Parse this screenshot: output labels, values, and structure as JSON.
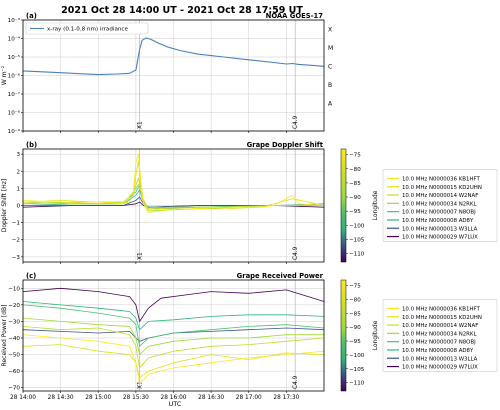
{
  "title": "2021 Oct 28 14:00 UT - 2021 Oct 28 17:59 UT",
  "colors": {
    "xray": "#4a7fbf",
    "grid": "#cccccc",
    "marker": "#aaaaaa"
  },
  "shared_x": {
    "xlabel": "UTC",
    "ticks": [
      "28 14:00",
      "28 14:30",
      "28 15:00",
      "28 15:30",
      "28 16:00",
      "28 16:30",
      "28 17:00",
      "28 17:30"
    ],
    "domain_minutes": [
      0,
      240
    ]
  },
  "chart_data": [
    {
      "type": "line",
      "panel_label": "(a)",
      "panel_title": "NOAA GOES-17",
      "ylabel": "W m⁻²",
      "yscale": "log",
      "ylim_exp": [
        -9,
        -3
      ],
      "yticks": [
        "10⁻⁹",
        "10⁻⁸",
        "10⁻⁷",
        "10⁻⁶",
        "10⁻⁵",
        "10⁻⁴",
        "10⁻³"
      ],
      "class_labels": [
        "X",
        "M",
        "C",
        "B",
        "A"
      ],
      "markers": [
        "X1",
        "C4.9"
      ],
      "series": [
        {
          "name": "x-ray (0.1-0.8 nm) irradiance",
          "x_minutes": [
            0,
            15,
            30,
            45,
            60,
            75,
            85,
            90,
            93,
            95,
            98,
            100,
            103,
            108,
            115,
            125,
            140,
            160,
            180,
            200,
            210,
            215,
            220,
            230,
            240
          ],
          "log10_y": [
            -5.75,
            -5.8,
            -5.85,
            -5.9,
            -5.95,
            -5.92,
            -5.88,
            -5.7,
            -4.6,
            -4.1,
            -3.98,
            -4.0,
            -4.08,
            -4.25,
            -4.45,
            -4.65,
            -4.85,
            -5.0,
            -5.15,
            -5.3,
            -5.38,
            -5.35,
            -5.4,
            -5.45,
            -5.5
          ]
        }
      ]
    },
    {
      "type": "line",
      "panel_label": "(b)",
      "panel_title": "Grape Doppler Shift",
      "ylabel": "Doppler Shift [Hz]",
      "ylim": [
        -3.3,
        3.3
      ],
      "yticks": [
        -3,
        -2,
        -1,
        0,
        1,
        2,
        3
      ],
      "markers": [
        "X1",
        "C4.9"
      ],
      "colorbar": {
        "label": "Longitude",
        "range": [
          -113,
          -73
        ],
        "ticks": [
          -75,
          -80,
          -85,
          -90,
          -95,
          -100,
          -105,
          -110
        ]
      },
      "legend": [
        "10.0 MHz N0000036 KB1HFT",
        "10.0 MHz N0000015 KD2UHN",
        "10.0 MHz N0000014 W2NAF",
        "10.0 MHz N0000034 N2RKL",
        "10.0 MHz N0000007 N8OBJ",
        "10.0 MHz N0000008 AD8Y",
        "10.0 MHz N0000013 W3LLA",
        "10.0 MHz N0000029 W7LUX"
      ],
      "series": [
        {
          "name": "10.0 MHz N0000036 KB1HFT",
          "color": "#fde725",
          "x_minutes": [
            0,
            30,
            60,
            80,
            88,
            90,
            92,
            94,
            96,
            100,
            110,
            130,
            160,
            190,
            200,
            215,
            220,
            240
          ],
          "values": [
            0.3,
            0.2,
            0.2,
            0.1,
            0.8,
            2.5,
            3.0,
            1.5,
            0.2,
            -0.3,
            -0.2,
            -0.2,
            -0.1,
            -0.1,
            0.0,
            0.6,
            0.1,
            0.0
          ]
        },
        {
          "name": "10.0 MHz N0000015 KD2UHN",
          "color": "#dde318",
          "x_minutes": [
            0,
            30,
            60,
            80,
            88,
            90,
            92,
            94,
            96,
            100,
            110,
            130,
            160,
            190,
            215,
            240
          ],
          "values": [
            0.2,
            0.3,
            0.2,
            0.2,
            0.6,
            1.8,
            2.6,
            1.0,
            0.1,
            -0.4,
            -0.3,
            -0.2,
            -0.2,
            -0.1,
            0.4,
            0.0
          ]
        },
        {
          "name": "10.0 MHz N0000014 W2NAF",
          "color": "#bddf26",
          "x_minutes": [
            0,
            30,
            60,
            85,
            90,
            92,
            95,
            100,
            120,
            160,
            200,
            240
          ],
          "values": [
            0.1,
            0.2,
            0.1,
            0.2,
            1.2,
            1.6,
            0.5,
            -0.2,
            -0.1,
            -0.1,
            0.0,
            0.0
          ]
        },
        {
          "name": "10.0 MHz N0000034 N2RKL",
          "color": "#a0da39",
          "x_minutes": [
            0,
            40,
            80,
            90,
            93,
            96,
            100,
            140,
            200,
            240
          ],
          "values": [
            0.2,
            0.1,
            0.1,
            1.0,
            1.3,
            0.3,
            -0.3,
            -0.2,
            0.0,
            0.0
          ]
        },
        {
          "name": "10.0 MHz N0000007 N8OBJ",
          "color": "#4ac16d",
          "x_minutes": [
            0,
            40,
            80,
            90,
            93,
            96,
            100,
            140,
            200,
            240
          ],
          "values": [
            0.1,
            0.2,
            0.2,
            0.8,
            1.2,
            0.2,
            -0.2,
            -0.1,
            0.0,
            0.1
          ]
        },
        {
          "name": "10.0 MHz N0000008 AD8Y",
          "color": "#2fb47c",
          "x_minutes": [
            0,
            40,
            80,
            90,
            93,
            96,
            100,
            140,
            200,
            240
          ],
          "values": [
            0.0,
            0.1,
            0.1,
            0.6,
            0.9,
            0.2,
            -0.1,
            -0.1,
            0.0,
            0.0
          ]
        },
        {
          "name": "10.0 MHz N0000013 W3LLA",
          "color": "#3b528b",
          "x_minutes": [
            0,
            40,
            80,
            90,
            93,
            96,
            100,
            140,
            200,
            240
          ],
          "values": [
            0.0,
            0.0,
            0.0,
            0.3,
            0.5,
            0.1,
            -0.1,
            0.0,
            0.0,
            0.0
          ]
        },
        {
          "name": "10.0 MHz N0000029 W7LUX",
          "color": "#440154",
          "x_minutes": [
            0,
            40,
            80,
            90,
            93,
            96,
            100,
            140,
            200,
            240
          ],
          "values": [
            -0.1,
            0.0,
            0.0,
            0.1,
            0.2,
            0.0,
            -0.1,
            0.0,
            0.0,
            -0.1
          ]
        }
      ]
    },
    {
      "type": "line",
      "panel_label": "(c)",
      "panel_title": "Grape Received Power",
      "ylabel": "Received Power [dB]",
      "ylim": [
        -72,
        -5
      ],
      "yticks": [
        -70,
        -60,
        -50,
        -40,
        -30,
        -20,
        -10
      ],
      "markers": [
        "X1",
        "C4.9"
      ],
      "colorbar": {
        "label": "Longitude",
        "range": [
          -113,
          -73
        ],
        "ticks": [
          -75,
          -80,
          -85,
          -90,
          -95,
          -100,
          -105,
          -110
        ]
      },
      "legend": [
        "10.0 MHz N0000036 KB1HFT",
        "10.0 MHz N0000015 KD2UHN",
        "10.0 MHz N0000014 W2NAF",
        "10.0 MHz N0000034 N2RKL",
        "10.0 MHz N0000007 N8OBJ",
        "10.0 MHz N0000008 AD8Y",
        "10.0 MHz N0000013 W3LLA",
        "10.0 MHz N0000029 W7LUX"
      ],
      "series": [
        {
          "name": "10.0 MHz N0000036 KB1HFT",
          "color": "#fde725",
          "x_minutes": [
            0,
            30,
            60,
            85,
            90,
            93,
            100,
            120,
            150,
            180,
            210,
            240
          ],
          "values": [
            -38,
            -40,
            -42,
            -45,
            -55,
            -68,
            -62,
            -58,
            -55,
            -52,
            -50,
            -48
          ]
        },
        {
          "name": "10.0 MHz N0000015 KD2UHN",
          "color": "#dde318",
          "x_minutes": [
            0,
            30,
            60,
            85,
            90,
            93,
            100,
            120,
            150,
            180,
            210,
            240
          ],
          "values": [
            -45,
            -44,
            -48,
            -50,
            -55,
            -64,
            -60,
            -55,
            -50,
            -53,
            -49,
            -50
          ]
        },
        {
          "name": "10.0 MHz N0000014 W2NAF",
          "color": "#bddf26",
          "x_minutes": [
            0,
            30,
            60,
            85,
            90,
            93,
            100,
            120,
            150,
            180,
            210,
            240
          ],
          "values": [
            -33,
            -35,
            -34,
            -38,
            -45,
            -58,
            -52,
            -48,
            -45,
            -44,
            -42,
            -40
          ]
        },
        {
          "name": "10.0 MHz N0000034 N2RKL",
          "color": "#a0da39",
          "x_minutes": [
            0,
            30,
            60,
            85,
            90,
            93,
            100,
            120,
            150,
            180,
            210,
            240
          ],
          "values": [
            -28,
            -30,
            -32,
            -33,
            -40,
            -50,
            -45,
            -42,
            -40,
            -40,
            -38,
            -38
          ]
        },
        {
          "name": "10.0 MHz N0000007 N8OBJ",
          "color": "#4ac16d",
          "x_minutes": [
            0,
            30,
            60,
            85,
            90,
            93,
            100,
            120,
            150,
            180,
            210,
            240
          ],
          "values": [
            -20,
            -22,
            -25,
            -28,
            -32,
            -45,
            -40,
            -37,
            -35,
            -33,
            -32,
            -34
          ]
        },
        {
          "name": "10.0 MHz N0000008 AD8Y",
          "color": "#2fb47c",
          "x_minutes": [
            0,
            30,
            60,
            85,
            90,
            93,
            100,
            120,
            150,
            180,
            210,
            240
          ],
          "values": [
            -18,
            -20,
            -22,
            -24,
            -28,
            -35,
            -30,
            -29,
            -27,
            -26,
            -26,
            -27
          ]
        },
        {
          "name": "10.0 MHz N0000013 W3LLA",
          "color": "#3b528b",
          "x_minutes": [
            0,
            30,
            60,
            85,
            90,
            93,
            100,
            120,
            150,
            180,
            210,
            240
          ],
          "values": [
            -35,
            -36,
            -37,
            -36,
            -40,
            -42,
            -40,
            -37,
            -36,
            -35,
            -34,
            -35
          ]
        },
        {
          "name": "10.0 MHz N0000029 W7LUX",
          "color": "#440154",
          "x_minutes": [
            0,
            30,
            60,
            85,
            90,
            93,
            100,
            110,
            130,
            150,
            180,
            210,
            240
          ],
          "values": [
            -12,
            -10,
            -12,
            -15,
            -20,
            -30,
            -22,
            -16,
            -14,
            -12,
            -13,
            -11,
            -18
          ]
        }
      ]
    }
  ]
}
